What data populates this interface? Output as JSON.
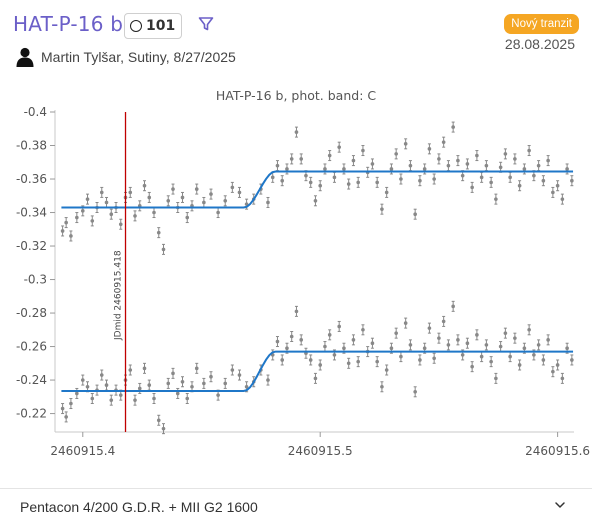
{
  "header": {
    "title": "HAT-P-16 b",
    "count": "101",
    "observer": "Martin Tylšar, Sutiny, 8/27/2025",
    "badge": "Nový tranzit",
    "date": "28.08.2025"
  },
  "footer": {
    "equipment": "Pentacon 4/200 G.D.R. + MII G2 1600"
  },
  "colors": {
    "accent": "#6b5fc8",
    "badge": "#f5a623",
    "model": "#1f77c8",
    "marker": "#c00000",
    "points": "#888888"
  },
  "chart_data": {
    "type": "scatter",
    "title": "HAT-P-16 b, phot. band: C",
    "xlim": [
      2460915.3883,
      2460915.6069
    ],
    "ylim": [
      -0.4,
      -0.209
    ],
    "y_reversed": true,
    "x_ticks": [
      "2460915.4",
      "2460915.5",
      "2460915.6"
    ],
    "x_tick_values": [
      2460915.4,
      2460915.5,
      2460915.6
    ],
    "y_ticks": [
      "-0.4",
      "-0.38",
      "-0.36",
      "-0.34",
      "-0.32",
      "-0.3",
      "-0.28",
      "-0.26",
      "-0.24",
      "-0.22"
    ],
    "y_tick_values": [
      -0.4,
      -0.38,
      -0.36,
      -0.34,
      -0.32,
      -0.3,
      -0.28,
      -0.26,
      -0.24,
      -0.22
    ],
    "marker": {
      "x": 2460915.418,
      "label": "JDmid 2460915.418"
    },
    "series": [
      {
        "baseline": -0.343,
        "depth": 0.0215,
        "ingress": 2460915.468,
        "egress_end": 2460915.481,
        "x_start": 2460915.391,
        "x_end": 2460915.6065,
        "points": [
          [
            2460915.3915,
            -0.329
          ],
          [
            2460915.393,
            -0.334
          ],
          [
            2460915.395,
            -0.326
          ],
          [
            2460915.3975,
            -0.337
          ],
          [
            2460915.4,
            -0.341
          ],
          [
            2460915.402,
            -0.348
          ],
          [
            2460915.404,
            -0.335
          ],
          [
            2460915.406,
            -0.343
          ],
          [
            2460915.408,
            -0.352
          ],
          [
            2460915.41,
            -0.346
          ],
          [
            2460915.412,
            -0.339
          ],
          [
            2460915.414,
            -0.343
          ],
          [
            2460915.416,
            -0.333
          ],
          [
            2460915.418,
            -0.349
          ],
          [
            2460915.42,
            -0.352
          ],
          [
            2460915.422,
            -0.338
          ],
          [
            2460915.424,
            -0.344
          ],
          [
            2460915.426,
            -0.356
          ],
          [
            2460915.428,
            -0.349
          ],
          [
            2460915.43,
            -0.34
          ],
          [
            2460915.432,
            -0.328
          ],
          [
            2460915.434,
            -0.318
          ],
          [
            2460915.436,
            -0.347
          ],
          [
            2460915.438,
            -0.354
          ],
          [
            2460915.44,
            -0.343
          ],
          [
            2460915.442,
            -0.349
          ],
          [
            2460915.444,
            -0.337
          ],
          [
            2460915.446,
            -0.344
          ],
          [
            2460915.448,
            -0.354
          ],
          [
            2460915.451,
            -0.346
          ],
          [
            2460915.454,
            -0.351
          ],
          [
            2460915.457,
            -0.34
          ],
          [
            2460915.46,
            -0.347
          ],
          [
            2460915.463,
            -0.355
          ],
          [
            2460915.466,
            -0.352
          ],
          [
            2460915.469,
            -0.345
          ],
          [
            2460915.472,
            -0.348
          ],
          [
            2460915.475,
            -0.354
          ],
          [
            2460915.478,
            -0.346
          ],
          [
            2460915.48,
            -0.361
          ],
          [
            2460915.482,
            -0.368
          ],
          [
            2460915.484,
            -0.359
          ],
          [
            2460915.486,
            -0.366
          ],
          [
            2460915.488,
            -0.372
          ],
          [
            2460915.49,
            -0.388
          ],
          [
            2460915.492,
            -0.372
          ],
          [
            2460915.494,
            -0.362
          ],
          [
            2460915.496,
            -0.358
          ],
          [
            2460915.498,
            -0.347
          ],
          [
            2460915.5,
            -0.356
          ],
          [
            2460915.502,
            -0.366
          ],
          [
            2460915.504,
            -0.374
          ],
          [
            2460915.506,
            -0.361
          ],
          [
            2460915.508,
            -0.379
          ],
          [
            2460915.51,
            -0.366
          ],
          [
            2460915.512,
            -0.357
          ],
          [
            2460915.514,
            -0.371
          ],
          [
            2460915.516,
            -0.358
          ],
          [
            2460915.518,
            -0.377
          ],
          [
            2460915.52,
            -0.364
          ],
          [
            2460915.522,
            -0.369
          ],
          [
            2460915.524,
            -0.358
          ],
          [
            2460915.526,
            -0.342
          ],
          [
            2460915.528,
            -0.352
          ],
          [
            2460915.53,
            -0.366
          ],
          [
            2460915.532,
            -0.375
          ],
          [
            2460915.534,
            -0.36
          ],
          [
            2460915.536,
            -0.381
          ],
          [
            2460915.538,
            -0.368
          ],
          [
            2460915.54,
            -0.339
          ],
          [
            2460915.542,
            -0.359
          ],
          [
            2460915.544,
            -0.366
          ],
          [
            2460915.546,
            -0.378
          ],
          [
            2460915.548,
            -0.36
          ],
          [
            2460915.55,
            -0.372
          ],
          [
            2460915.552,
            -0.382
          ],
          [
            2460915.554,
            -0.368
          ],
          [
            2460915.556,
            -0.391
          ],
          [
            2460915.558,
            -0.371
          ],
          [
            2460915.56,
            -0.362
          ],
          [
            2460915.562,
            -0.369
          ],
          [
            2460915.564,
            -0.355
          ],
          [
            2460915.566,
            -0.374
          ],
          [
            2460915.568,
            -0.361
          ],
          [
            2460915.57,
            -0.368
          ],
          [
            2460915.572,
            -0.358
          ],
          [
            2460915.574,
            -0.348
          ],
          [
            2460915.576,
            -0.367
          ],
          [
            2460915.578,
            -0.375
          ],
          [
            2460915.58,
            -0.361
          ],
          [
            2460915.582,
            -0.372
          ],
          [
            2460915.584,
            -0.356
          ],
          [
            2460915.586,
            -0.366
          ],
          [
            2460915.588,
            -0.377
          ],
          [
            2460915.59,
            -0.362
          ],
          [
            2460915.592,
            -0.368
          ],
          [
            2460915.594,
            -0.359
          ],
          [
            2460915.596,
            -0.371
          ],
          [
            2460915.598,
            -0.352
          ],
          [
            2460915.6,
            -0.356
          ],
          [
            2460915.602,
            -0.348
          ],
          [
            2460915.604,
            -0.366
          ],
          [
            2460915.606,
            -0.359
          ]
        ]
      },
      {
        "baseline": -0.2335,
        "depth": 0.0235,
        "ingress": 2460915.468,
        "egress_end": 2460915.481,
        "x_start": 2460915.391,
        "x_end": 2460915.6065,
        "points": [
          [
            2460915.3915,
            -0.223
          ],
          [
            2460915.393,
            -0.218
          ],
          [
            2460915.395,
            -0.226
          ],
          [
            2460915.3975,
            -0.232
          ],
          [
            2460915.4,
            -0.24
          ],
          [
            2460915.402,
            -0.236
          ],
          [
            2460915.404,
            -0.229
          ],
          [
            2460915.406,
            -0.234
          ],
          [
            2460915.408,
            -0.243
          ],
          [
            2460915.41,
            -0.237
          ],
          [
            2460915.412,
            -0.228
          ],
          [
            2460915.414,
            -0.234
          ],
          [
            2460915.416,
            -0.231
          ],
          [
            2460915.418,
            -0.24
          ],
          [
            2460915.42,
            -0.246
          ],
          [
            2460915.422,
            -0.228
          ],
          [
            2460915.424,
            -0.235
          ],
          [
            2460915.426,
            -0.247
          ],
          [
            2460915.428,
            -0.237
          ],
          [
            2460915.43,
            -0.229
          ],
          [
            2460915.432,
            -0.216
          ],
          [
            2460915.434,
            -0.211
          ],
          [
            2460915.436,
            -0.238
          ],
          [
            2460915.438,
            -0.244
          ],
          [
            2460915.44,
            -0.232
          ],
          [
            2460915.442,
            -0.239
          ],
          [
            2460915.444,
            -0.229
          ],
          [
            2460915.446,
            -0.236
          ],
          [
            2460915.448,
            -0.247
          ],
          [
            2460915.451,
            -0.238
          ],
          [
            2460915.454,
            -0.242
          ],
          [
            2460915.457,
            -0.231
          ],
          [
            2460915.46,
            -0.238
          ],
          [
            2460915.463,
            -0.246
          ],
          [
            2460915.466,
            -0.243
          ],
          [
            2460915.469,
            -0.236
          ],
          [
            2460915.472,
            -0.239
          ],
          [
            2460915.475,
            -0.246
          ],
          [
            2460915.478,
            -0.24
          ],
          [
            2460915.48,
            -0.255
          ],
          [
            2460915.482,
            -0.263
          ],
          [
            2460915.484,
            -0.252
          ],
          [
            2460915.486,
            -0.259
          ],
          [
            2460915.488,
            -0.266
          ],
          [
            2460915.49,
            -0.281
          ],
          [
            2460915.492,
            -0.264
          ],
          [
            2460915.494,
            -0.256
          ],
          [
            2460915.496,
            -0.252
          ],
          [
            2460915.498,
            -0.241
          ],
          [
            2460915.5,
            -0.249
          ],
          [
            2460915.502,
            -0.26
          ],
          [
            2460915.504,
            -0.267
          ],
          [
            2460915.506,
            -0.255
          ],
          [
            2460915.508,
            -0.272
          ],
          [
            2460915.51,
            -0.259
          ],
          [
            2460915.512,
            -0.25
          ],
          [
            2460915.514,
            -0.264
          ],
          [
            2460915.516,
            -0.251
          ],
          [
            2460915.518,
            -0.27
          ],
          [
            2460915.52,
            -0.257
          ],
          [
            2460915.522,
            -0.262
          ],
          [
            2460915.524,
            -0.251
          ],
          [
            2460915.526,
            -0.236
          ],
          [
            2460915.528,
            -0.246
          ],
          [
            2460915.53,
            -0.259
          ],
          [
            2460915.532,
            -0.268
          ],
          [
            2460915.534,
            -0.254
          ],
          [
            2460915.536,
            -0.274
          ],
          [
            2460915.538,
            -0.261
          ],
          [
            2460915.54,
            -0.233
          ],
          [
            2460915.542,
            -0.252
          ],
          [
            2460915.544,
            -0.259
          ],
          [
            2460915.546,
            -0.271
          ],
          [
            2460915.548,
            -0.253
          ],
          [
            2460915.55,
            -0.265
          ],
          [
            2460915.552,
            -0.275
          ],
          [
            2460915.554,
            -0.261
          ],
          [
            2460915.556,
            -0.284
          ],
          [
            2460915.558,
            -0.264
          ],
          [
            2460915.56,
            -0.255
          ],
          [
            2460915.562,
            -0.262
          ],
          [
            2460915.564,
            -0.248
          ],
          [
            2460915.566,
            -0.267
          ],
          [
            2460915.568,
            -0.254
          ],
          [
            2460915.57,
            -0.261
          ],
          [
            2460915.572,
            -0.251
          ],
          [
            2460915.574,
            -0.241
          ],
          [
            2460915.576,
            -0.26
          ],
          [
            2460915.578,
            -0.268
          ],
          [
            2460915.58,
            -0.254
          ],
          [
            2460915.582,
            -0.265
          ],
          [
            2460915.584,
            -0.249
          ],
          [
            2460915.586,
            -0.259
          ],
          [
            2460915.588,
            -0.27
          ],
          [
            2460915.59,
            -0.255
          ],
          [
            2460915.592,
            -0.261
          ],
          [
            2460915.594,
            -0.252
          ],
          [
            2460915.596,
            -0.264
          ],
          [
            2460915.598,
            -0.245
          ],
          [
            2460915.6,
            -0.249
          ],
          [
            2460915.602,
            -0.241
          ],
          [
            2460915.604,
            -0.259
          ],
          [
            2460915.606,
            -0.252
          ]
        ]
      }
    ]
  }
}
